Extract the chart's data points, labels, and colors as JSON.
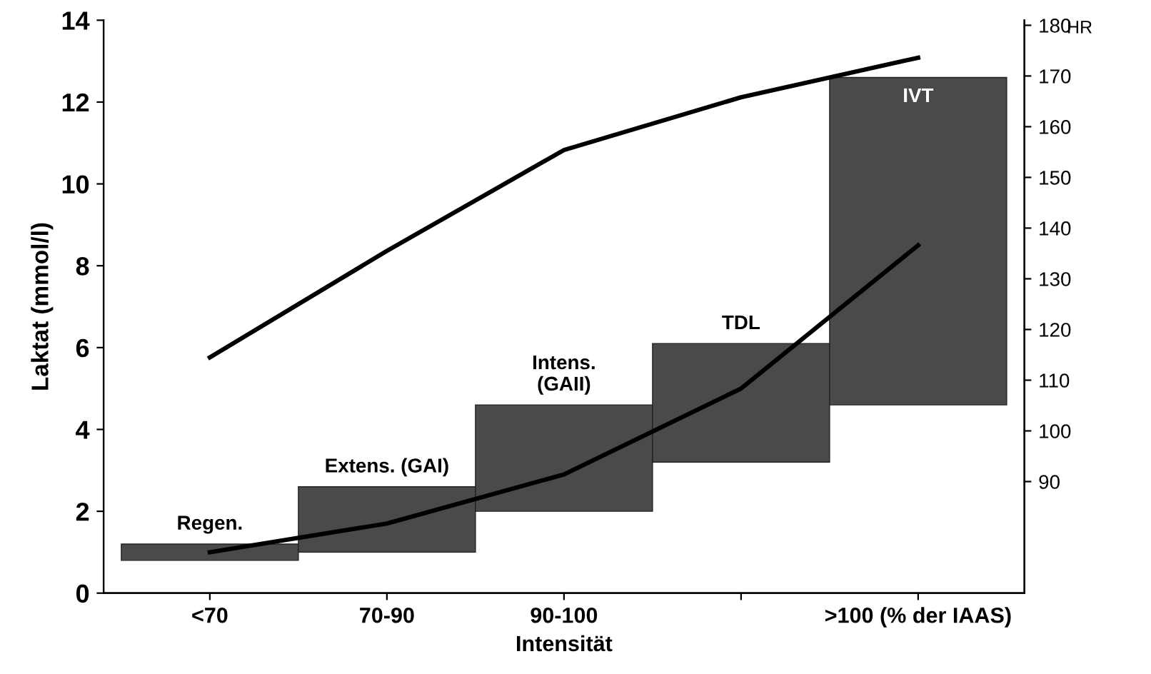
{
  "chart_data": {
    "type": "bar",
    "xlabel": "Intensität",
    "ylabel": "Laktat (mmol/l)",
    "y2label": "HR",
    "categories": [
      "<70",
      "70-90",
      "90-100",
      null,
      ">100 (% der IAAS)"
    ],
    "series": [
      {
        "color": "#4a4a4a",
        "base": [
          0.8,
          1.0,
          2.0,
          3.2,
          4.6
        ],
        "values": [
          0.4,
          1.6,
          2.6,
          2.9,
          8.0
        ]
      },
      {
        "type": "line",
        "color": "#000000",
        "values": [
          1.0,
          1.7,
          2.9,
          5.0,
          8.5
        ]
      },
      {
        "type": "line",
        "color": "#000000",
        "axis": "y2",
        "values": [
          114.5,
          135.5,
          155.4,
          165.8,
          173.6
        ]
      }
    ],
    "annotations": [
      "Regen.",
      "Extens. (GAI)",
      "Intens.\n(GAII)",
      "TDL",
      "IVT"
    ],
    "ylim": [
      0,
      14
    ],
    "yticks": [
      0,
      2,
      4,
      6,
      8,
      10,
      12,
      14
    ],
    "y2lim": [
      68,
      181
    ],
    "y2ticks": [
      90,
      100,
      110,
      120,
      130,
      140,
      150,
      160,
      170,
      180
    ],
    "grid": false
  }
}
